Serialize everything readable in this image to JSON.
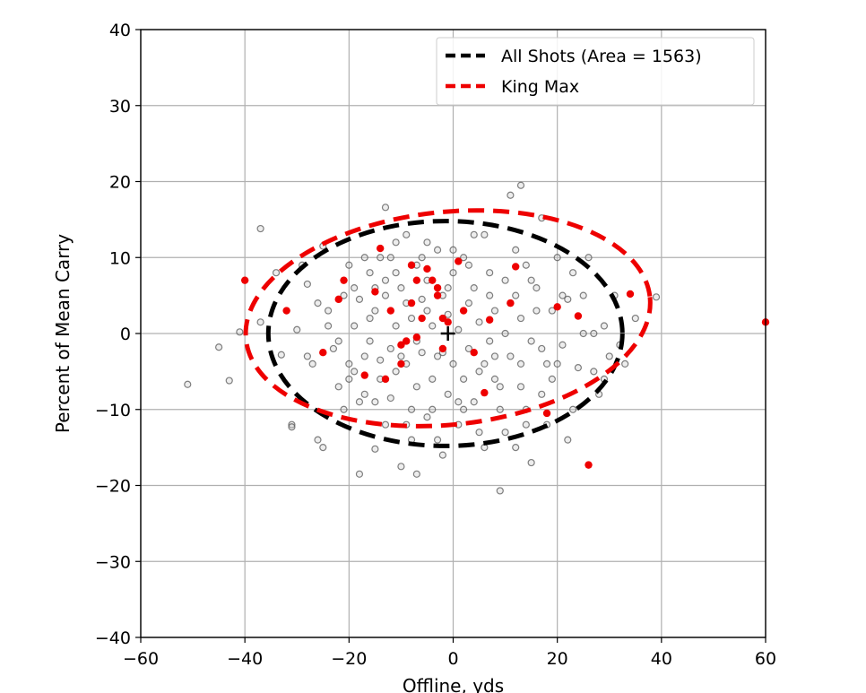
{
  "chart_data": {
    "type": "scatter",
    "title": "",
    "xlabel": "Offline, yds",
    "ylabel": "Percent of Mean Carry",
    "xlim": [
      -60,
      60
    ],
    "ylim": [
      -40,
      40
    ],
    "xticks": [
      -60,
      -40,
      -20,
      0,
      20,
      40,
      60
    ],
    "yticks": [
      -40,
      -30,
      -20,
      -10,
      0,
      10,
      20,
      30,
      40
    ],
    "xtick_labels": [
      "−60",
      "−40",
      "−20",
      "0",
      "20",
      "40",
      "60"
    ],
    "ytick_labels": [
      "−40",
      "−30",
      "−20",
      "−10",
      "0",
      "10",
      "20",
      "30",
      "40"
    ],
    "grid": true,
    "legend_position": "top-right",
    "legend": [
      {
        "label": "All Shots (Area = 1563)",
        "color": "#000000",
        "style": "dashed"
      },
      {
        "label": "King Max",
        "color": "#ee0000",
        "style": "dashed"
      }
    ],
    "ellipses": [
      {
        "name": "All Shots (Area = 1563)",
        "color": "#000000",
        "center": [
          -1.5,
          0
        ],
        "semi_axes": [
          34,
          14.8
        ],
        "angle_deg": 0
      },
      {
        "name": "King Max",
        "color": "#ee0000",
        "center": [
          -1,
          2
        ],
        "semi_axes": [
          39,
          14
        ],
        "angle_deg": -6
      }
    ],
    "center_marker": {
      "x": -1,
      "y": 0,
      "symbol": "+"
    },
    "series": [
      {
        "name": "All Shots (Area = 1563)",
        "color": "#888888",
        "marker": "hollow-circle",
        "points": [
          [
            -51,
            -6.7
          ],
          [
            -45,
            -1.8
          ],
          [
            -43,
            -6.2
          ],
          [
            -41,
            0.2
          ],
          [
            -37,
            1.5
          ],
          [
            -37,
            13.8
          ],
          [
            -34,
            8
          ],
          [
            -33,
            -2.8
          ],
          [
            -31,
            -12
          ],
          [
            -31,
            -12.3
          ],
          [
            -30,
            0.5
          ],
          [
            -29,
            9
          ],
          [
            -28,
            6.5
          ],
          [
            -27,
            -4
          ],
          [
            -26,
            -14
          ],
          [
            -25,
            -15
          ],
          [
            -25,
            11.5
          ],
          [
            -24,
            3
          ],
          [
            -23,
            -2
          ],
          [
            -22,
            -1
          ],
          [
            -21,
            5
          ],
          [
            -20,
            9
          ],
          [
            -20,
            -6
          ],
          [
            -19,
            1
          ],
          [
            -18,
            -18.5
          ],
          [
            -18,
            4.5
          ],
          [
            -17,
            -8
          ],
          [
            -16,
            -1
          ],
          [
            -16,
            8
          ],
          [
            -15,
            -15.2
          ],
          [
            -15,
            3
          ],
          [
            -14,
            -3.5
          ],
          [
            -14,
            10
          ],
          [
            -13,
            16.6
          ],
          [
            -13,
            5
          ],
          [
            -12,
            -2
          ],
          [
            -12,
            -8.5
          ],
          [
            -11,
            12
          ],
          [
            -11,
            1
          ],
          [
            -10,
            -17.5
          ],
          [
            -10,
            6
          ],
          [
            -9,
            -4
          ],
          [
            -9,
            13
          ],
          [
            -8,
            -10
          ],
          [
            -8,
            2
          ],
          [
            -7,
            -18.5
          ],
          [
            -7,
            9
          ],
          [
            -6,
            -2.5
          ],
          [
            -6,
            4.5
          ],
          [
            -5,
            -11
          ],
          [
            -5,
            7
          ],
          [
            -4,
            -6
          ],
          [
            -4,
            1
          ],
          [
            -3,
            -14
          ],
          [
            -3,
            11
          ],
          [
            -2,
            -2.5
          ],
          [
            -2,
            5
          ],
          [
            -1,
            -8
          ],
          [
            -1,
            2.5
          ],
          [
            0,
            -4
          ],
          [
            0,
            8
          ],
          [
            1,
            -12
          ],
          [
            1,
            0.5
          ],
          [
            2,
            -6
          ],
          [
            2,
            10
          ],
          [
            3,
            -2
          ],
          [
            3,
            4
          ],
          [
            4,
            -9
          ],
          [
            4,
            6
          ],
          [
            5,
            -13
          ],
          [
            5,
            1.5
          ],
          [
            6,
            -4
          ],
          [
            6,
            13
          ],
          [
            7,
            -1
          ],
          [
            7,
            8
          ],
          [
            8,
            -6
          ],
          [
            8,
            3
          ],
          [
            9,
            -20.7
          ],
          [
            9,
            -10
          ],
          [
            10,
            0
          ],
          [
            10,
            7
          ],
          [
            11,
            18.2
          ],
          [
            11,
            -3
          ],
          [
            12,
            -15
          ],
          [
            12,
            5
          ],
          [
            13,
            -7
          ],
          [
            13,
            2
          ],
          [
            13,
            19.5
          ],
          [
            14,
            -12
          ],
          [
            14,
            9
          ],
          [
            15,
            -1
          ],
          [
            15,
            -17
          ],
          [
            16,
            6
          ],
          [
            17,
            15.2
          ],
          [
            17,
            -8
          ],
          [
            18,
            -4
          ],
          [
            19,
            3
          ],
          [
            20,
            10
          ],
          [
            21,
            -1.5
          ],
          [
            22,
            -14
          ],
          [
            22,
            4.5
          ],
          [
            23,
            8
          ],
          [
            24,
            -4.5
          ],
          [
            25,
            0
          ],
          [
            26,
            10
          ],
          [
            27,
            -5
          ],
          [
            28,
            -8
          ],
          [
            29,
            1
          ],
          [
            30,
            -3
          ],
          [
            31,
            5
          ],
          [
            32,
            -1.5
          ],
          [
            33,
            -4
          ],
          [
            35,
            2
          ],
          [
            39,
            4.8
          ],
          [
            -24,
            1
          ],
          [
            -22,
            -7
          ],
          [
            -19,
            6
          ],
          [
            -17,
            -3
          ],
          [
            -15,
            -9
          ],
          [
            -13,
            7
          ],
          [
            -11,
            -5
          ],
          [
            -9,
            4
          ],
          [
            -7,
            -7
          ],
          [
            -5,
            3
          ],
          [
            -3,
            -3
          ],
          [
            -1,
            6
          ],
          [
            1,
            -9
          ],
          [
            3,
            9
          ],
          [
            5,
            -5
          ],
          [
            7,
            5
          ],
          [
            9,
            -7
          ],
          [
            11,
            4
          ],
          [
            13,
            -4
          ],
          [
            15,
            7
          ],
          [
            17,
            -2
          ],
          [
            19,
            -6
          ],
          [
            21,
            5
          ],
          [
            23,
            -10
          ],
          [
            25,
            5
          ],
          [
            27,
            0
          ],
          [
            29,
            -6
          ],
          [
            -28,
            -3
          ],
          [
            -26,
            4
          ],
          [
            -20,
            -4
          ],
          [
            -18,
            -9
          ],
          [
            -16,
            2
          ],
          [
            -14,
            -6
          ],
          [
            -12,
            10
          ],
          [
            -10,
            -3
          ],
          [
            -8,
            -14
          ],
          [
            -6,
            10
          ],
          [
            -4,
            -10
          ],
          [
            -2,
            -16
          ],
          [
            0,
            11
          ],
          [
            2,
            -10
          ],
          [
            4,
            13
          ],
          [
            6,
            -15
          ],
          [
            8,
            -3
          ],
          [
            10,
            -13
          ],
          [
            12,
            11
          ],
          [
            14,
            -10
          ],
          [
            16,
            3
          ],
          [
            18,
            -12
          ],
          [
            20,
            -4
          ],
          [
            -21,
            -10
          ],
          [
            -19,
            -5
          ],
          [
            -17,
            10
          ],
          [
            -15,
            6
          ],
          [
            -13,
            -12
          ],
          [
            -11,
            8
          ],
          [
            -9,
            -12
          ],
          [
            -7,
            -1
          ],
          [
            -5,
            12
          ],
          [
            -3,
            6
          ]
        ]
      },
      {
        "name": "King Max",
        "color": "#ee0000",
        "marker": "filled-circle",
        "points": [
          [
            -40,
            7
          ],
          [
            -32,
            3
          ],
          [
            -25,
            -2.5
          ],
          [
            -22,
            4.5
          ],
          [
            -21,
            7
          ],
          [
            -17,
            -5.5
          ],
          [
            -15,
            5.5
          ],
          [
            -14,
            11.2
          ],
          [
            -13,
            -6
          ],
          [
            -12,
            3
          ],
          [
            -10,
            -4
          ],
          [
            -10,
            -1.5
          ],
          [
            -9,
            -1
          ],
          [
            -8,
            9
          ],
          [
            -8,
            4
          ],
          [
            -7,
            7
          ],
          [
            -7,
            -0.5
          ],
          [
            -6,
            2
          ],
          [
            -5,
            8.5
          ],
          [
            -4,
            7
          ],
          [
            -3,
            6
          ],
          [
            -3,
            5
          ],
          [
            -2,
            -2
          ],
          [
            -2,
            2
          ],
          [
            -1,
            1.5
          ],
          [
            1,
            9.5
          ],
          [
            2,
            3
          ],
          [
            4,
            -2.5
          ],
          [
            6,
            -7.8
          ],
          [
            7,
            1.8
          ],
          [
            11,
            4
          ],
          [
            12,
            8.8
          ],
          [
            18,
            -10.5
          ],
          [
            20,
            3.5
          ],
          [
            24,
            2.3
          ],
          [
            26,
            -17.3
          ],
          [
            34,
            5.2
          ],
          [
            60,
            1.5
          ]
        ]
      }
    ]
  }
}
